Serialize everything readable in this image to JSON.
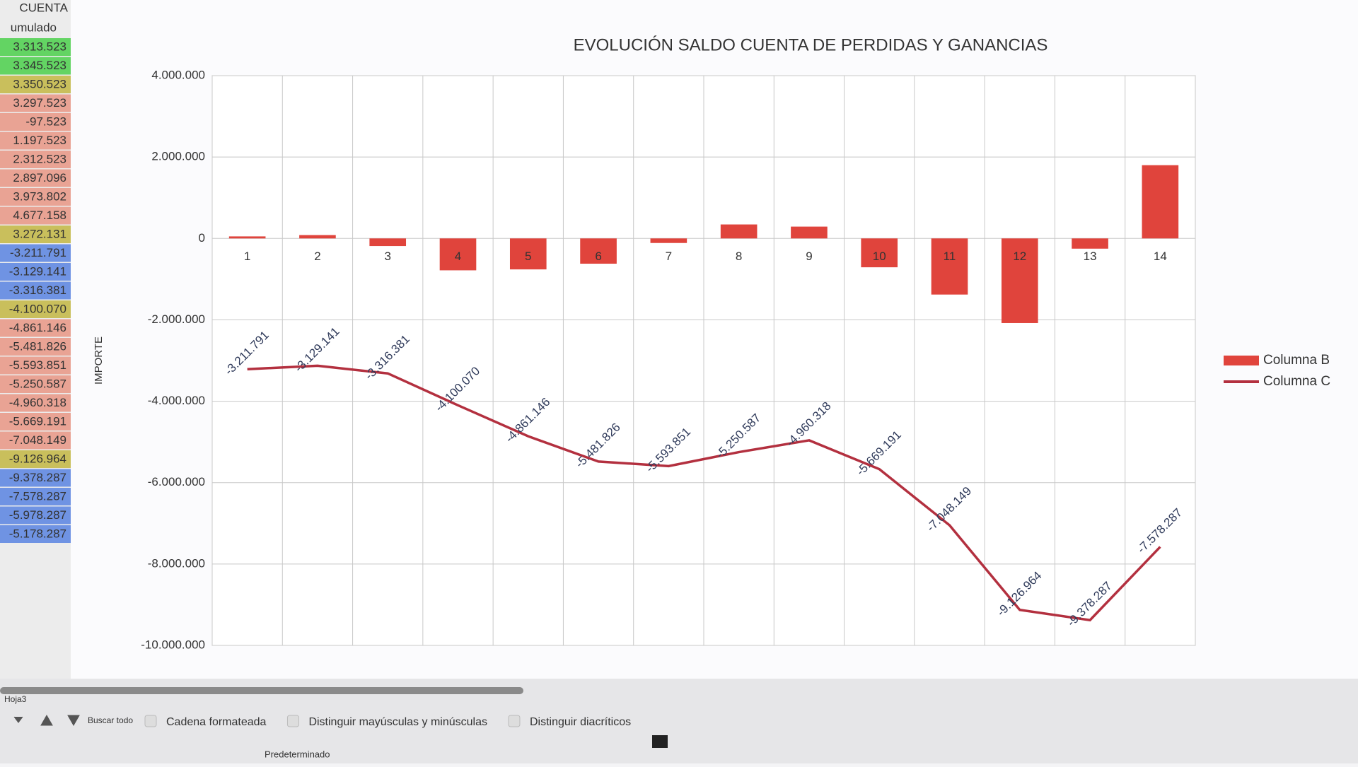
{
  "sheet": {
    "header": "CUENTA",
    "subheader": "umulado",
    "cells": [
      "3.313.523",
      "3.345.523",
      "3.350.523",
      "3.297.523",
      "-97.523",
      "1.197.523",
      "2.312.523",
      "2.897.096",
      "3.973.802",
      "4.677.158",
      "3.272.131",
      "-3.211.791",
      "-3.129.141",
      "-3.316.381",
      "-4.100.070",
      "-4.861.146",
      "-5.481.826",
      "-5.593.851",
      "-5.250.587",
      "-4.960.318",
      "-5.669.191",
      "-7.048.149",
      "-9.126.964",
      "-9.378.287",
      "-7.578.287",
      "-5.978.287",
      "-5.178.287"
    ],
    "cell_colors": [
      "#63d463",
      "#63d463",
      "#c9bf5c",
      "#e9a394",
      "#e9a394",
      "#e9a394",
      "#e9a394",
      "#e9a394",
      "#e9a394",
      "#e9a394",
      "#c9bf5c",
      "#6f93e3",
      "#6f93e3",
      "#6f93e3",
      "#c9bf5c",
      "#e9a394",
      "#e9a394",
      "#e9a394",
      "#e9a394",
      "#e9a394",
      "#e9a394",
      "#e9a394",
      "#c9bf5c",
      "#6f93e3",
      "#6f93e3",
      "#6f93e3",
      "#6f93e3"
    ]
  },
  "chart_data": {
    "type": "combo",
    "title": "EVOLUCIÓN SALDO CUENTA DE PERDIDAS Y GANANCIAS",
    "y_label": "IMPORTE",
    "categories": [
      "1",
      "2",
      "3",
      "4",
      "5",
      "6",
      "7",
      "8",
      "9",
      "10",
      "11",
      "12",
      "13",
      "14"
    ],
    "series": [
      {
        "name": "Columna B",
        "type": "bar",
        "color": "#e0443c",
        "values": [
          50000,
          82650,
          -187240,
          -783689,
          -761076,
          -620680,
          -112025,
          343264,
          290269,
          -708873,
          -1378958,
          -2078815,
          -251323,
          1800000
        ]
      },
      {
        "name": "Columna C",
        "type": "line",
        "color": "#b3303f",
        "values": [
          -3211791,
          -3129141,
          -3316381,
          -4100070,
          -4861146,
          -5481826,
          -5593851,
          -5250587,
          -4960318,
          -5669191,
          -7048149,
          -9126964,
          -9378287,
          -7578287
        ],
        "value_labels": [
          "-3.211.791",
          "-3.129.141",
          "-3.316.381",
          "-4.100.070",
          "-4.861.146",
          "-5.481.826",
          "-5.593.851",
          "-5.250.587",
          "-4.960.318",
          "-5.669.191",
          "-7.048.149",
          "-9.126.964",
          "-9.378.287",
          "-7.578.287"
        ]
      }
    ],
    "ylim": [
      -10000000,
      4000000
    ],
    "yticks": [
      {
        "value": 4000000,
        "label": "4.000.000"
      },
      {
        "value": 2000000,
        "label": "2.000.000"
      },
      0,
      {
        "value": -2000000,
        "label": "-2.000.000"
      },
      {
        "value": -4000000,
        "label": "-4.000.000"
      },
      {
        "value": -6000000,
        "label": "-6.000.000"
      },
      {
        "value": -8000000,
        "label": "-8.000.000"
      },
      {
        "value": -10000000,
        "label": "-10.000.000"
      }
    ],
    "grid": true,
    "legend": "right"
  },
  "footer": {
    "tab": "Hoja3",
    "find_all": "Buscar todo",
    "options": [
      "Cadena formateada",
      "Distinguir mayúsculas y minúsculas",
      "Distinguir diacríticos"
    ],
    "status": "Predeterminado"
  }
}
